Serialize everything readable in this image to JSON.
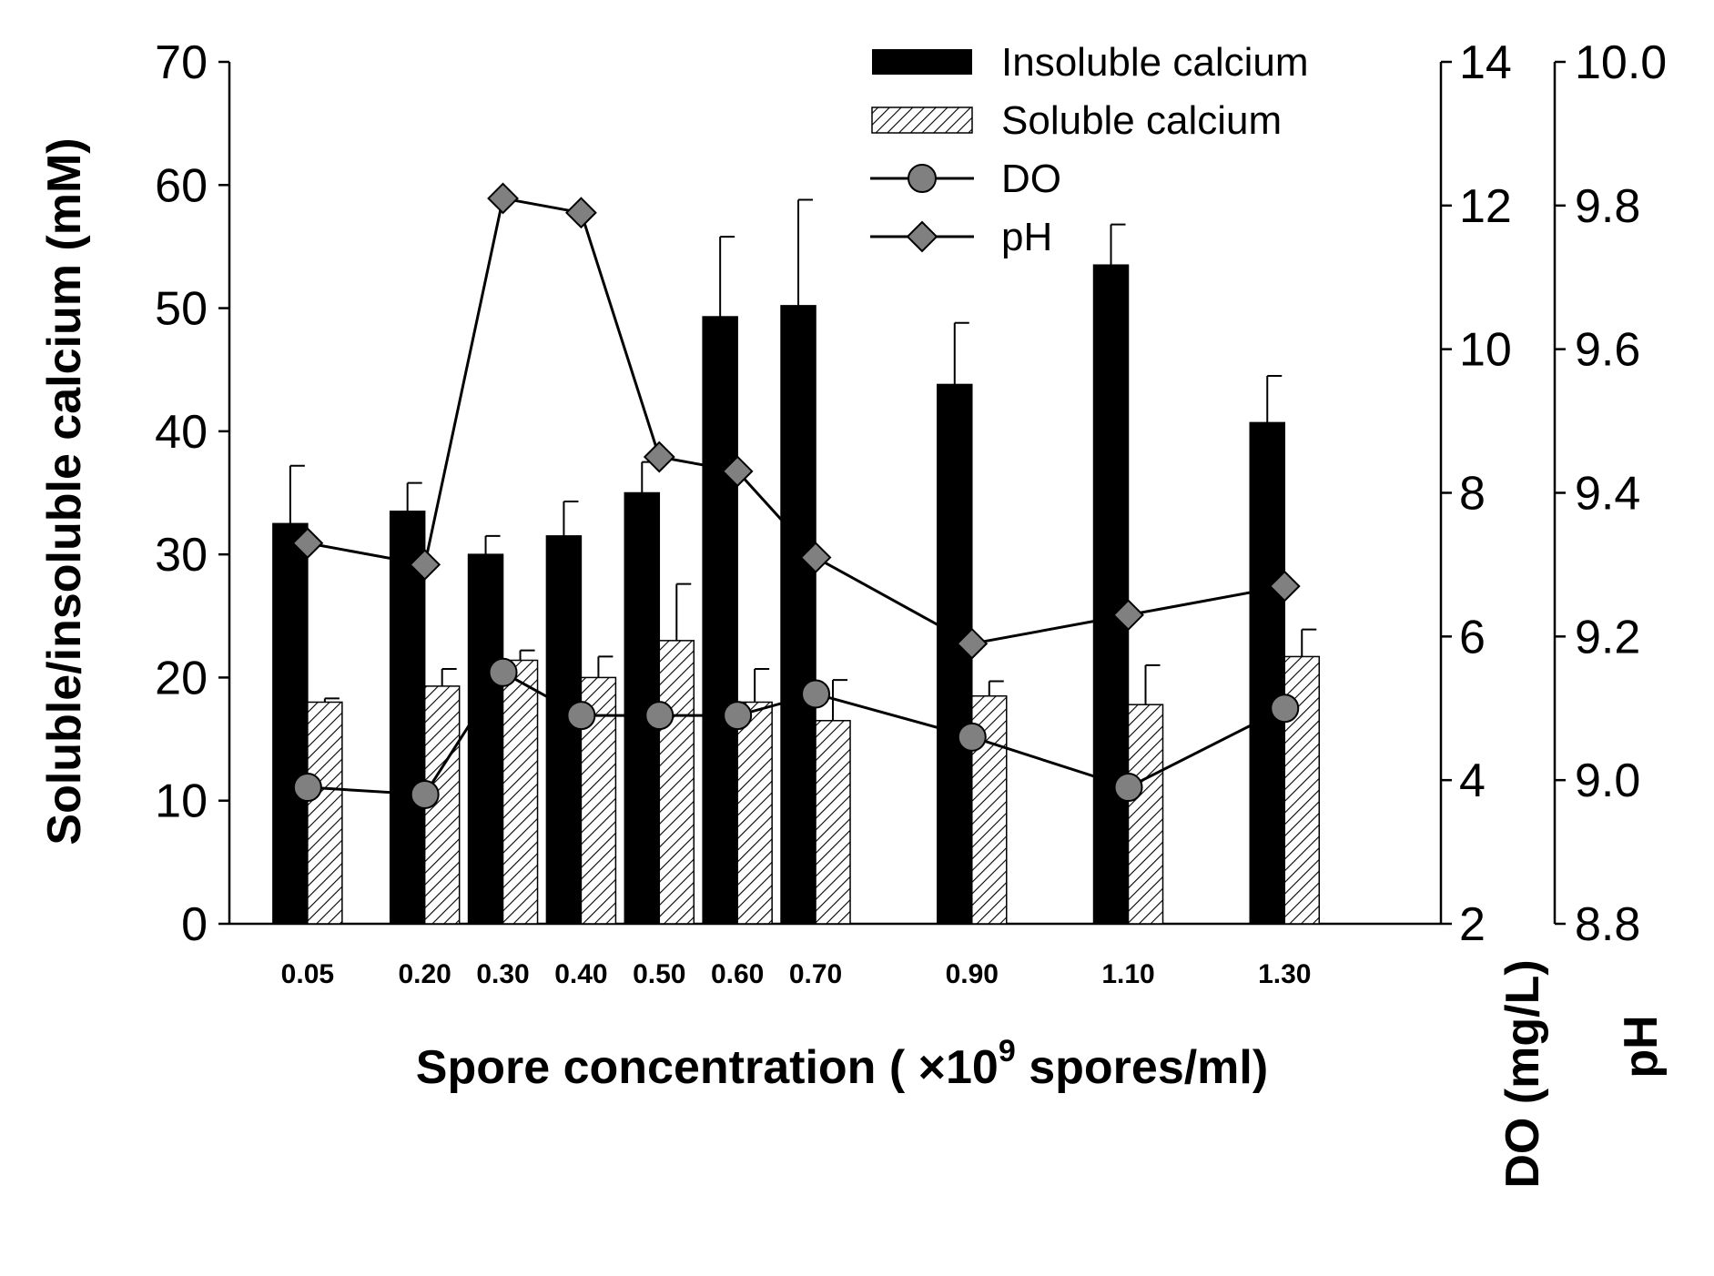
{
  "chart_data": {
    "type": "bar",
    "title": "",
    "x": [
      0.05,
      0.2,
      0.3,
      0.4,
      0.5,
      0.6,
      0.7,
      0.9,
      1.1,
      1.3
    ],
    "x_tick_labels": [
      "0.05",
      "0.20",
      "0.30",
      "0.40",
      "0.50",
      "0.60",
      "0.70",
      "0.90",
      "1.10",
      "1.30"
    ],
    "xlabel": {
      "text": "Spore concentration ( ×10",
      "superscript": "9",
      "suffix": " spores/ml)"
    },
    "xlim": [
      -0.05,
      1.5
    ],
    "axes": {
      "left": {
        "label": "Soluble/insoluble calcium (mM)",
        "ylim": [
          0,
          70
        ],
        "ticks": [
          0,
          10,
          20,
          30,
          40,
          50,
          60,
          70
        ]
      },
      "right_do": {
        "label": "DO (mg/L)",
        "ylim": [
          2,
          14
        ],
        "ticks": [
          2,
          4,
          6,
          8,
          10,
          12,
          14
        ]
      },
      "right_ph": {
        "label": "pH",
        "ylim": [
          8.8,
          10.0
        ],
        "ticks": [
          "8.8",
          "9.0",
          "9.2",
          "9.4",
          "9.6",
          "9.8",
          "10.0"
        ]
      }
    },
    "series": [
      {
        "name": "Insoluble calcium",
        "kind": "bar",
        "axis": "left",
        "fill": "#000000",
        "values": [
          32.5,
          33.5,
          30.0,
          31.5,
          35.0,
          49.3,
          50.2,
          43.8,
          53.5,
          40.7
        ],
        "errors": [
          4.7,
          2.3,
          1.5,
          2.8,
          2.5,
          6.5,
          8.6,
          5.0,
          3.3,
          3.8
        ]
      },
      {
        "name": "Soluble calcium",
        "kind": "bar",
        "axis": "left",
        "fill": "hatch",
        "values": [
          18.0,
          19.3,
          21.4,
          20.0,
          23.0,
          18.0,
          16.5,
          18.5,
          17.8,
          21.7
        ],
        "errors": [
          0.3,
          1.4,
          0.8,
          1.7,
          4.6,
          2.7,
          3.3,
          1.2,
          3.2,
          2.2
        ]
      },
      {
        "name": "DO",
        "kind": "line",
        "marker": "circle",
        "axis": "right_do",
        "color": "#808080",
        "values": [
          3.9,
          3.8,
          5.5,
          4.9,
          4.9,
          4.9,
          5.2,
          4.6,
          3.9,
          5.0
        ]
      },
      {
        "name": "pH",
        "kind": "line",
        "marker": "diamond",
        "axis": "right_ph",
        "color": "#808080",
        "values": [
          9.33,
          9.3,
          9.81,
          9.79,
          9.45,
          9.43,
          9.31,
          9.19,
          9.23,
          9.27
        ]
      }
    ],
    "legend": {
      "position": "top-right"
    },
    "grid": false
  }
}
